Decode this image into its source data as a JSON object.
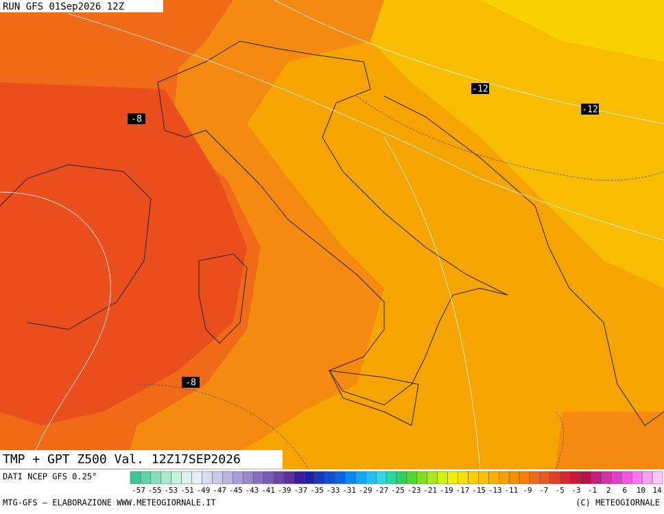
{
  "header": {
    "run": "RUN GFS 01Sep2026 12Z"
  },
  "map": {
    "contour_labels": [
      -8,
      -12,
      -12,
      -8
    ]
  },
  "footer": {
    "title": "TMP + GPT Z500 Val. 12Z17SEP2026",
    "source": "DATI NCEP GFS 0.25°",
    "credit_left": "MTG-GFS — ELABORAZIONE WWW.METEOGIORNALE.IT",
    "credit_right": "(C) METEOGIORNALE"
  },
  "colorbar": {
    "labels": [
      -57,
      -55,
      -53,
      -51,
      -49,
      -47,
      -45,
      -43,
      -41,
      -39,
      -37,
      -35,
      -33,
      -31,
      -29,
      -27,
      -25,
      -23,
      -21,
      -19,
      -17,
      -15,
      -13,
      -11,
      -9,
      -7,
      -5,
      -3,
      -1,
      2,
      6,
      10,
      14
    ],
    "colors": [
      "#3cc89a",
      "#5fd3a8",
      "#84dfba",
      "#a6e9cd",
      "#c4f0de",
      "#dcf5ec",
      "#e8eef8",
      "#d8dcf2",
      "#c8c8ea",
      "#b8b4e2",
      "#a89ed8",
      "#9888cc",
      "#8872c0",
      "#785cb4",
      "#6846a8",
      "#5a309c",
      "#3c1c9c",
      "#2020a8",
      "#1838c0",
      "#1050d4",
      "#0868e4",
      "#0888f0",
      "#10a4f4",
      "#20c0f4",
      "#30d8e8",
      "#28d8a0",
      "#30d060",
      "#50d830",
      "#80e020",
      "#a8e818",
      "#d0f010",
      "#f0f000",
      "#f8e000",
      "#f8d000",
      "#f8c000",
      "#f8b000",
      "#f8a000",
      "#f89000",
      "#f88000",
      "#f06c18",
      "#e85820",
      "#e04028",
      "#d82830",
      "#c81838",
      "#b81048",
      "#c0207c",
      "#d030a8",
      "#e040c8",
      "#f058e0",
      "#f878f0",
      "#f8a0f4",
      "#fcc8fa"
    ]
  }
}
